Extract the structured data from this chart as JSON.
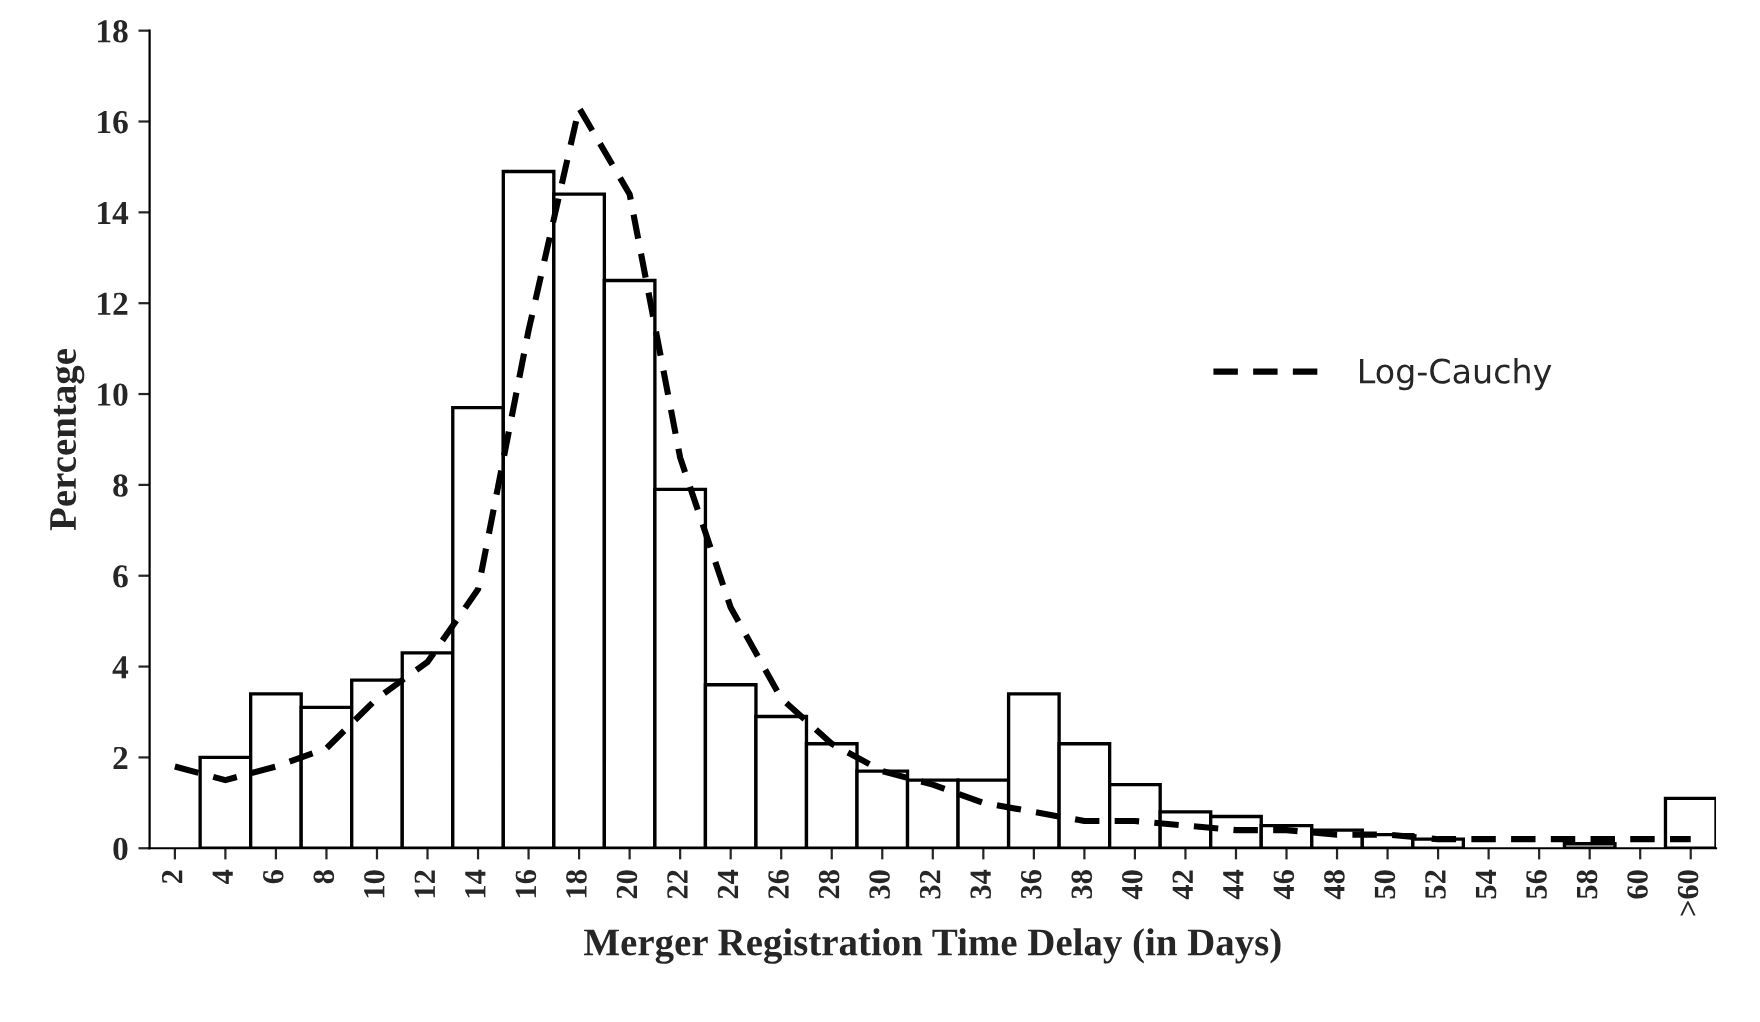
{
  "chart_data": {
    "type": "bar",
    "xlabel": "Merger Registration Time Delay (in Days)",
    "ylabel": "Percentage",
    "categories": [
      "2",
      "4",
      "6",
      "8",
      "10",
      "12",
      "14",
      "16",
      "18",
      "20",
      "22",
      "24",
      "26",
      "28",
      "30",
      "32",
      "34",
      "36",
      "38",
      "40",
      "42",
      "44",
      "46",
      "48",
      "50",
      "52",
      "54",
      "56",
      "58",
      "60",
      ">60"
    ],
    "series": [
      {
        "color": "#ffffff",
        "values": [
          0,
          2.0,
          3.4,
          3.1,
          3.7,
          4.3,
          9.7,
          14.9,
          14.4,
          12.5,
          7.9,
          3.6,
          2.9,
          2.3,
          1.7,
          1.5,
          1.5,
          3.4,
          2.3,
          1.4,
          0.8,
          0.7,
          0.5,
          0.4,
          0.3,
          0.2,
          null,
          null,
          0.1,
          0,
          1.1
        ]
      },
      {
        "type": "line",
        "name": "Log-Cauchy",
        "color": "#000000",
        "line_style": "dashed",
        "values": [
          1.8,
          1.5,
          1.8,
          2.2,
          3.3,
          4.1,
          5.7,
          11.4,
          16.3,
          14.4,
          8.6,
          5.3,
          3.3,
          2.3,
          1.7,
          1.4,
          1.0,
          0.8,
          0.6,
          0.6,
          0.5,
          0.4,
          0.4,
          0.3,
          0.3,
          0.2,
          0.2,
          0.2,
          0.2,
          0.2,
          0.2
        ]
      }
    ],
    "ylim": [
      0,
      18
    ],
    "yticks": [
      0,
      2,
      4,
      6,
      8,
      10,
      12,
      14,
      16,
      18
    ],
    "legend": "right",
    "grid": false
  }
}
